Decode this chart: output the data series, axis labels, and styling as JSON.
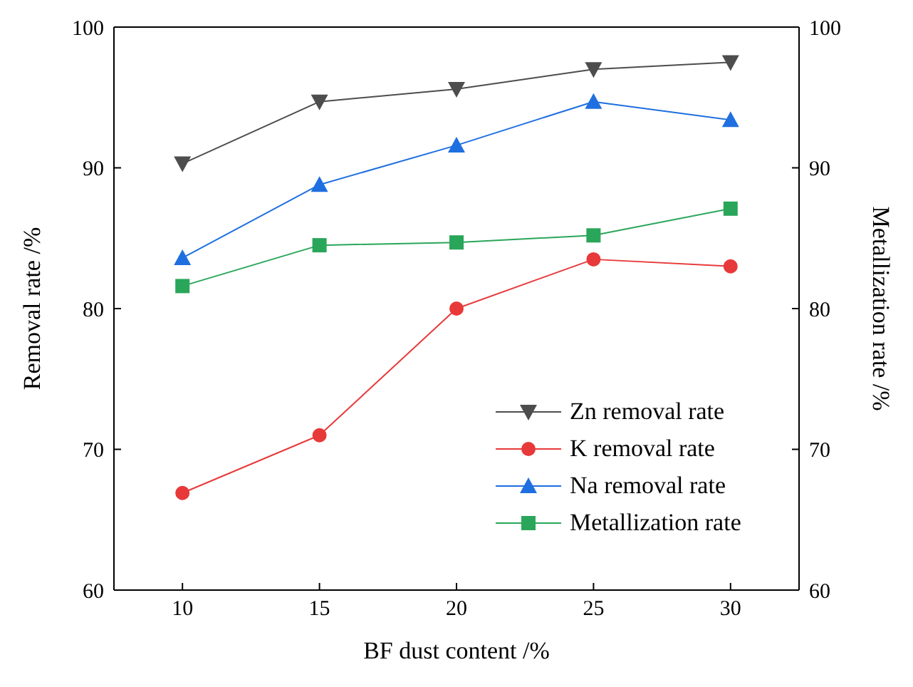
{
  "chart_data": {
    "type": "line",
    "xlabel": "BF dust content /%",
    "ylabel": "Removal rate /%",
    "y2label": "Metallization rate /%",
    "x": [
      10,
      15,
      20,
      25,
      30
    ],
    "xlim": [
      7.5,
      32.5
    ],
    "xticks": [
      10,
      15,
      20,
      25,
      30
    ],
    "ylim": [
      60,
      100
    ],
    "yticks": [
      60,
      70,
      80,
      90,
      100
    ],
    "y2lim": [
      60,
      100
    ],
    "y2ticks": [
      60,
      70,
      80,
      90,
      100
    ],
    "grid": false,
    "legend": "bottom right",
    "line_style": "solid",
    "series": [
      {
        "name": "Zn removal rate",
        "color": "#4d4d4d",
        "marker": "triangle-down",
        "values": [
          90.3,
          94.7,
          95.6,
          97.0,
          97.5
        ]
      },
      {
        "name": "K removal rate",
        "color": "#e8393a",
        "marker": "circle",
        "values": [
          66.9,
          71.0,
          80.0,
          83.5,
          83.0
        ]
      },
      {
        "name": "Na removal rate",
        "color": "#1f6fe0",
        "marker": "triangle",
        "values": [
          83.6,
          88.8,
          91.6,
          94.7,
          93.4
        ]
      },
      {
        "name": "Metallization rate",
        "color": "#2aa65a",
        "marker": "square",
        "axis": "y2",
        "values": [
          81.6,
          84.5,
          84.7,
          85.2,
          87.1
        ]
      }
    ]
  }
}
